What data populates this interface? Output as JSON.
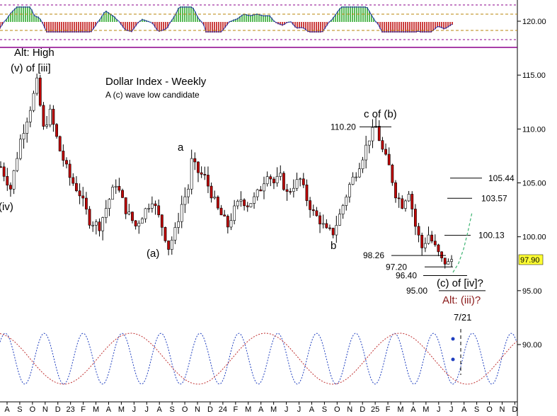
{
  "chart_data": {
    "type": "candlestick",
    "title": "Dollar Index - Weekly",
    "subtitle": "A (c) wave low candidate",
    "ylim": [
      87,
      122
    ],
    "price_ticks": [
      "120.00",
      "115.00",
      "110.00",
      "105.00",
      "100.00",
      "95.00",
      "90.00"
    ],
    "price_tick_values": [
      120,
      115,
      110,
      105,
      100,
      95,
      90
    ],
    "last_price": "97.90",
    "last_price_value": 97.9,
    "x_ticks": [
      "A",
      "S",
      "O",
      "N",
      "D",
      "23",
      "F",
      "M",
      "A",
      "M",
      "J",
      "J",
      "A",
      "S",
      "O",
      "N",
      "D",
      "24",
      "F",
      "M",
      "A",
      "M",
      "J",
      "J",
      "A",
      "S",
      "O",
      "N",
      "D",
      "25",
      "F",
      "M",
      "A",
      "M",
      "J",
      "J",
      "A",
      "S",
      "O",
      "N",
      "D"
    ],
    "wave_labels": {
      "alt_high": "Alt: High",
      "v_of_iii": "(v) of [iii]",
      "iv": "(iv)",
      "a": "a",
      "a_paren": "(a)",
      "b": "b",
      "c_of_b": "c of (b)",
      "c_of_iv": "(c) of [iv]?",
      "alt_iii": "Alt: (iii)?"
    },
    "levels": [
      {
        "label": "110.20",
        "value": 110.2
      },
      {
        "label": "105.44",
        "value": 105.44
      },
      {
        "label": "103.57",
        "value": 103.57
      },
      {
        "label": "100.13",
        "value": 100.13
      },
      {
        "label": "98.26",
        "value": 98.26
      },
      {
        "label": "97.20",
        "value": 97.2
      },
      {
        "label": "96.40",
        "value": 96.4
      },
      {
        "label": "95.00",
        "value": 95.0
      }
    ],
    "cycle_date_label": "7/21",
    "price_path": [
      [
        0,
        106.5
      ],
      [
        3,
        104.5
      ],
      [
        6,
        109
      ],
      [
        9,
        112
      ],
      [
        11,
        114.3
      ],
      [
        13,
        110
      ],
      [
        15,
        111.5
      ],
      [
        18,
        108
      ],
      [
        21,
        105.5
      ],
      [
        24,
        104
      ],
      [
        27,
        101.5
      ],
      [
        30,
        101
      ],
      [
        33,
        103.5
      ],
      [
        35,
        105
      ],
      [
        38,
        102.5
      ],
      [
        41,
        101
      ],
      [
        44,
        102.5
      ],
      [
        46,
        103.5
      ],
      [
        49,
        101
      ],
      [
        51,
        99
      ],
      [
        53,
        100.5
      ],
      [
        55,
        103
      ],
      [
        57,
        104.5
      ],
      [
        58,
        107
      ],
      [
        60,
        106
      ],
      [
        62,
        105.5
      ],
      [
        64,
        104
      ],
      [
        66,
        102.5
      ],
      [
        69,
        101
      ],
      [
        71,
        102.5
      ],
      [
        73,
        103.5
      ],
      [
        75,
        103
      ],
      [
        77,
        103.5
      ],
      [
        79,
        104.5
      ],
      [
        81,
        106
      ],
      [
        83,
        105
      ],
      [
        85,
        105.5
      ],
      [
        87,
        104
      ],
      [
        89,
        104.8
      ],
      [
        91,
        105.3
      ],
      [
        93,
        103.5
      ],
      [
        95,
        102.2
      ],
      [
        97,
        101.5
      ],
      [
        99,
        100.5
      ],
      [
        101,
        100.4
      ],
      [
        103,
        102
      ],
      [
        106,
        104.8
      ],
      [
        108,
        106
      ],
      [
        110,
        107.5
      ],
      [
        112,
        109.2
      ],
      [
        114,
        110.2
      ],
      [
        116,
        108
      ],
      [
        118,
        106.5
      ],
      [
        120,
        104
      ],
      [
        122,
        103
      ],
      [
        124,
        104.3
      ],
      [
        126,
        101
      ],
      [
        128,
        99
      ],
      [
        130,
        100.2
      ],
      [
        132,
        99
      ],
      [
        134,
        97.8
      ],
      [
        136,
        97.5
      ],
      [
        137,
        97.9
      ]
    ]
  }
}
